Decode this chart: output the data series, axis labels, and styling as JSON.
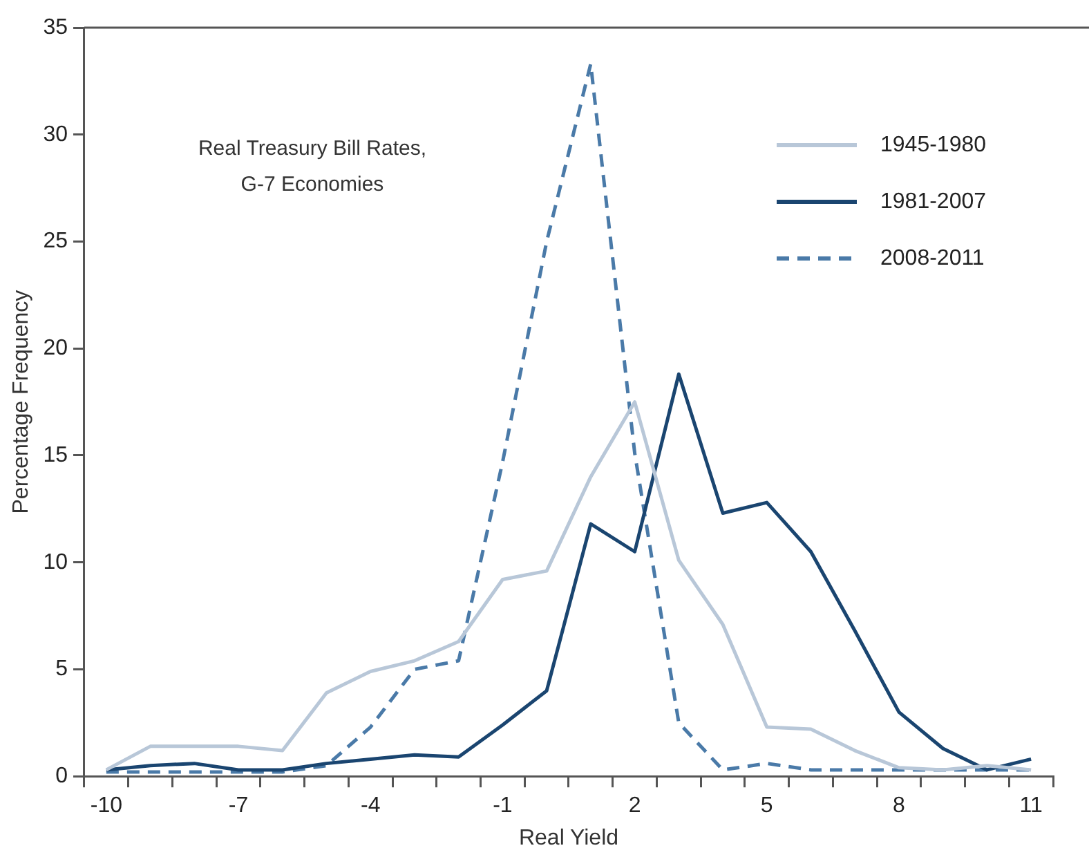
{
  "chart_data": {
    "type": "line",
    "title": "Real Treasury Bill Rates, G-7 Economies",
    "xlabel": "Real Yield",
    "ylabel": "Percentage Frequency",
    "categories": [
      "-10",
      null,
      null,
      "-7",
      null,
      null,
      "-4",
      null,
      null,
      "-1",
      null,
      null,
      "2",
      null,
      null,
      "5",
      null,
      null,
      "8",
      null,
      null,
      "11"
    ],
    "ylim": [
      0,
      35
    ],
    "yticks": [
      0,
      5,
      10,
      15,
      20,
      25,
      30,
      35
    ],
    "grid": false,
    "legend": "top right",
    "marker": "none",
    "series": [
      {
        "name": "1945-1980",
        "color": "#b8c7d8",
        "line_style": "solid",
        "values": [
          0.3,
          1.4,
          1.4,
          1.4,
          1.2,
          3.9,
          4.9,
          5.4,
          6.3,
          9.2,
          9.6,
          14.0,
          17.5,
          10.1,
          7.1,
          2.3,
          2.2,
          1.2,
          0.4,
          0.3,
          0.5,
          0.3
        ]
      },
      {
        "name": "1981-2007",
        "color": "#1a4570",
        "line_style": "solid",
        "values": [
          0.3,
          0.5,
          0.6,
          0.3,
          0.3,
          0.6,
          0.8,
          1.0,
          0.9,
          2.4,
          4.0,
          11.8,
          10.5,
          18.8,
          12.3,
          12.8,
          10.5,
          6.8,
          3.0,
          1.3,
          0.3,
          0.8
        ]
      },
      {
        "name": "2008-2011",
        "color": "#4a7aa8",
        "line_style": "dashed",
        "values": [
          0.2,
          0.2,
          0.2,
          0.2,
          0.2,
          0.5,
          2.3,
          5.0,
          5.4,
          14.7,
          25.0,
          33.3,
          15.1,
          2.5,
          0.3,
          0.6,
          0.3,
          0.3,
          0.3,
          0.3,
          0.3,
          0.3
        ]
      }
    ]
  }
}
